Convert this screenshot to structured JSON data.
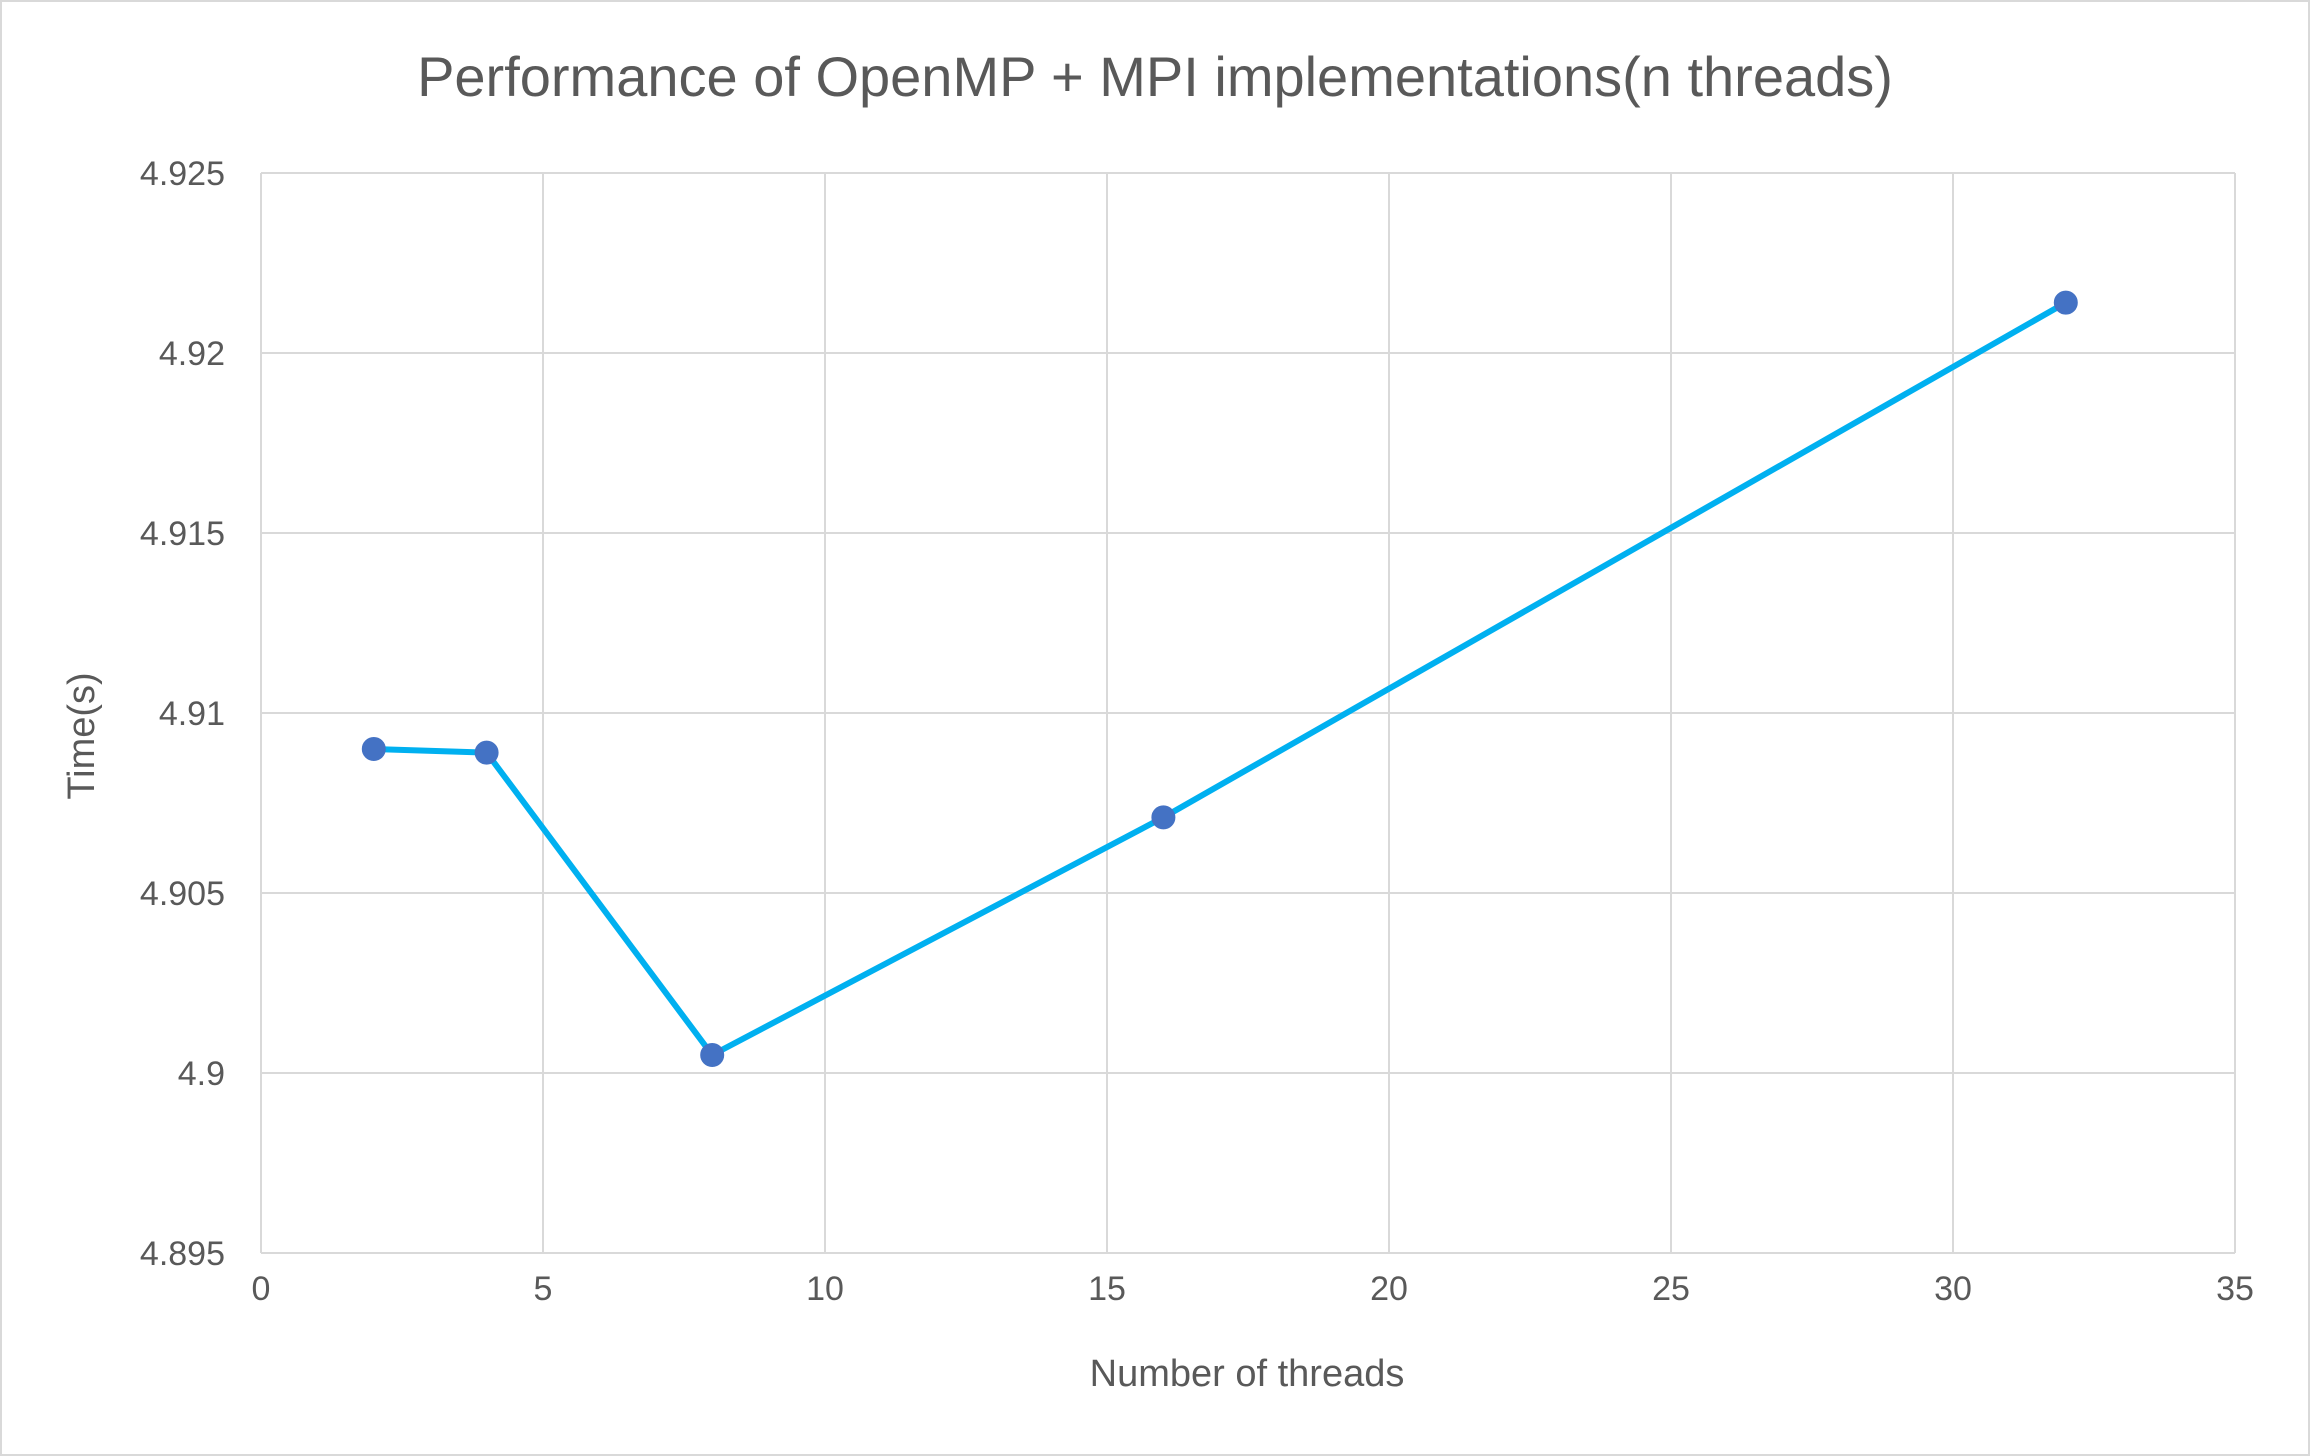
{
  "chart_data": {
    "type": "scatter",
    "title": "Performance of OpenMP + MPI implementations(n threads)",
    "xlabel": "Number of threads",
    "ylabel": "Time(s)",
    "xlim": [
      0,
      35
    ],
    "ylim": [
      4.895,
      4.925
    ],
    "xticks": [
      0,
      5,
      10,
      15,
      20,
      25,
      30,
      35
    ],
    "yticks": [
      4.895,
      4.9,
      4.905,
      4.91,
      4.915,
      4.92,
      4.925
    ],
    "xtick_labels": [
      "0",
      "5",
      "10",
      "15",
      "20",
      "25",
      "30",
      "35"
    ],
    "ytick_labels": [
      "4.895",
      "4.9",
      "4.905",
      "4.91",
      "4.915",
      "4.92",
      "4.925"
    ],
    "grid": true,
    "legend": "none",
    "series": [
      {
        "x": [
          2,
          4,
          8,
          16,
          32
        ],
        "y": [
          4.909,
          4.9089,
          4.9005,
          4.9071,
          4.9214
        ],
        "line_color": "#00b0f0",
        "marker_color": "#4472c4"
      }
    ]
  }
}
